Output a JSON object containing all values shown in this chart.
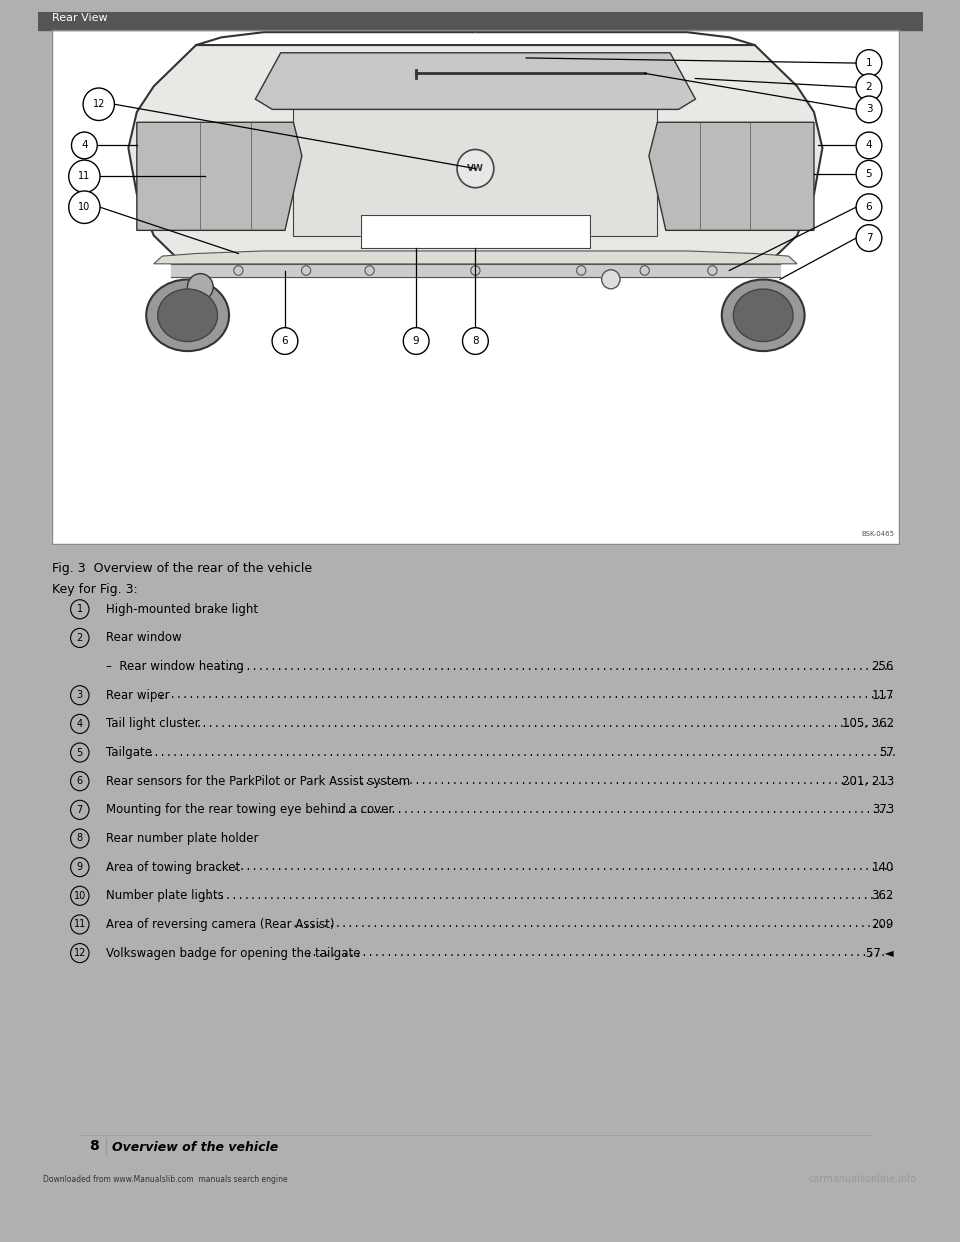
{
  "bg_color": "#b0b0b0",
  "page_bg": "#d8d8d8",
  "content_bg": "#f5f5f0",
  "fig_caption": "Fig. 3  Overview of the rear of the vehicle",
  "key_header": "Key for Fig. 3:",
  "footer_left_page": "8",
  "footer_center": "Overview of the vehicle",
  "footer_bottom_left": "Downloaded from www.Manualslib.com  manuals search engine",
  "footer_bottom_right": "carmanualsonline.info",
  "corner_text_top_left": "Rear View",
  "bsk_ref": "BSK-0465",
  "display_items": [
    {
      "type": "main",
      "num": 1,
      "text": "High-mounted brake light",
      "page_ref": "",
      "has_dots": false
    },
    {
      "type": "main",
      "num": 2,
      "text": "Rear window",
      "page_ref": "",
      "has_dots": false
    },
    {
      "type": "sub",
      "num": null,
      "text": "–  Rear window heating",
      "page_ref": "256",
      "has_dots": true
    },
    {
      "type": "main",
      "num": 3,
      "text": "Rear wiper",
      "page_ref": "117",
      "has_dots": true
    },
    {
      "type": "main",
      "num": 4,
      "text": "Tail light cluster",
      "page_ref": "105, 362",
      "has_dots": true
    },
    {
      "type": "main",
      "num": 5,
      "text": "Tailgate",
      "page_ref": "57",
      "has_dots": true
    },
    {
      "type": "main",
      "num": 6,
      "text": "Rear sensors for the ParkPilot or Park Assist system",
      "page_ref": "201, 213",
      "has_dots": true
    },
    {
      "type": "main",
      "num": 7,
      "text": "Mounting for the rear towing eye behind a cover",
      "page_ref": "373",
      "has_dots": true
    },
    {
      "type": "main",
      "num": 8,
      "text": "Rear number plate holder",
      "page_ref": "",
      "has_dots": false
    },
    {
      "type": "main",
      "num": 9,
      "text": "Area of towing bracket",
      "page_ref": "140",
      "has_dots": true
    },
    {
      "type": "main",
      "num": 10,
      "text": "Number plate lights",
      "page_ref": "362",
      "has_dots": true
    },
    {
      "type": "main",
      "num": 11,
      "text": "Area of reversing camera (Rear Assist)",
      "page_ref": "209",
      "has_dots": true
    },
    {
      "type": "main",
      "num": 12,
      "text": "Volkswagen badge for opening the tailgate",
      "page_ref": "57 ◄",
      "has_dots": true
    }
  ]
}
